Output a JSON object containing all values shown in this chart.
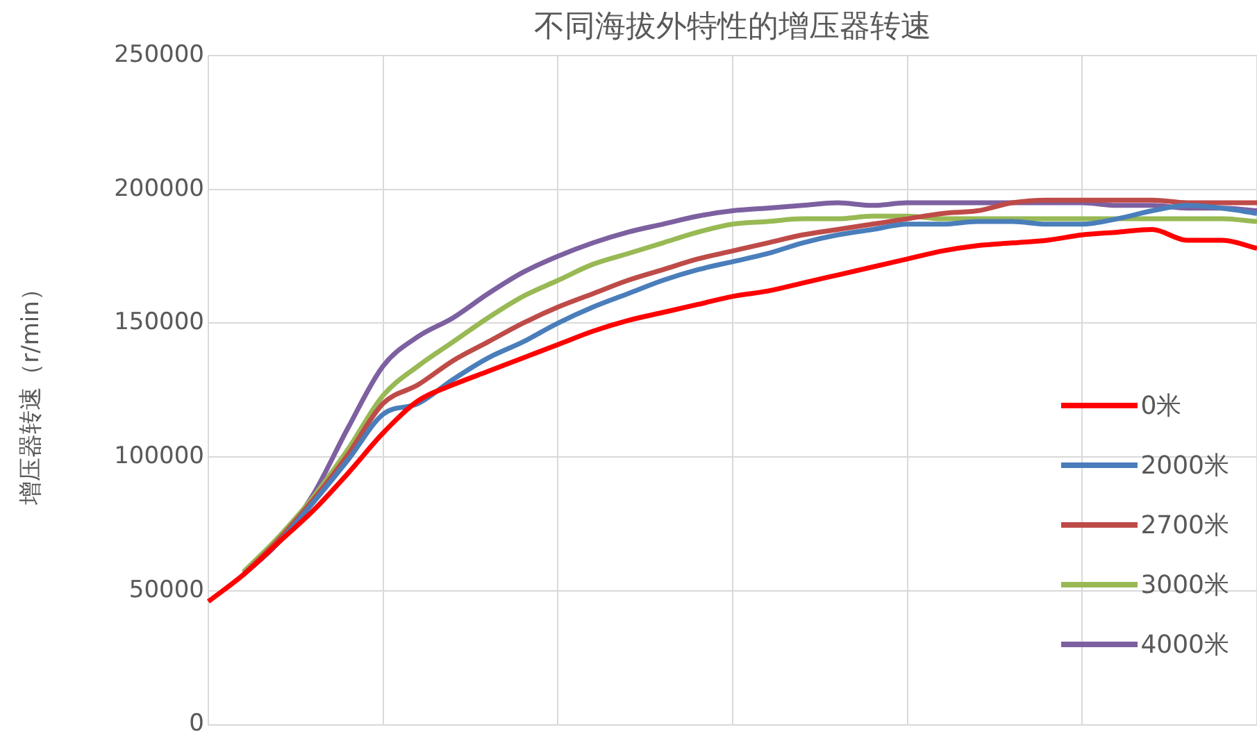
{
  "chart_data": {
    "type": "line",
    "title": "不同海拔外特性的增压器转速",
    "ylabel": "增压器转速（r/min）",
    "categories": [
      null,
      null,
      null,
      null,
      null,
      null,
      null,
      null,
      null,
      null,
      null,
      null,
      null,
      null,
      null,
      null,
      null,
      null,
      null,
      null,
      null,
      null,
      null,
      null,
      null,
      null,
      null,
      null,
      null,
      null,
      null
    ],
    "ylim": [
      0,
      250000
    ],
    "yticks": [
      0,
      50000,
      100000,
      150000,
      200000,
      250000
    ],
    "grid": true,
    "legend": "right",
    "tick_labels": "y",
    "marker": "none",
    "line_style": "solid",
    "series": [
      {
        "name": "0米",
        "color": "#ff0000",
        "values": [
          46000,
          56000,
          68000,
          80000,
          94000,
          109000,
          121000,
          127000,
          132000,
          137000,
          142000,
          147000,
          151000,
          154000,
          157000,
          160000,
          162000,
          165000,
          168000,
          171000,
          174000,
          177000,
          179000,
          180000,
          181000,
          183000,
          184000,
          185000,
          181000,
          181000,
          178000
        ]
      },
      {
        "name": "2000米",
        "color": "#4a7ebb",
        "values": [
          null,
          56000,
          68000,
          83000,
          99000,
          116000,
          120000,
          129000,
          137000,
          143000,
          150000,
          156000,
          161000,
          166000,
          170000,
          173000,
          176000,
          180000,
          183000,
          185000,
          187000,
          187000,
          188000,
          188000,
          187000,
          187000,
          189000,
          192000,
          194000,
          193000,
          191000
        ]
      },
      {
        "name": "2700米",
        "color": "#be4b48",
        "values": [
          null,
          56000,
          69000,
          84000,
          101000,
          120000,
          127000,
          136000,
          143000,
          150000,
          156000,
          161000,
          166000,
          170000,
          174000,
          177000,
          180000,
          183000,
          185000,
          187000,
          189000,
          191000,
          192000,
          195000,
          196000,
          196000,
          196000,
          196000,
          195000,
          195000,
          195000
        ]
      },
      {
        "name": "3000米",
        "color": "#98b954",
        "values": [
          null,
          57000,
          70000,
          85000,
          103000,
          123000,
          134000,
          143000,
          152000,
          160000,
          166000,
          172000,
          176000,
          180000,
          184000,
          187000,
          188000,
          189000,
          189000,
          190000,
          190000,
          189000,
          189000,
          189000,
          189000,
          189000,
          189000,
          189000,
          189000,
          189000,
          188000
        ]
      },
      {
        "name": "4000米",
        "color": "#7d60a0",
        "values": [
          null,
          56000,
          68000,
          86000,
          111000,
          134000,
          145000,
          152000,
          161000,
          169000,
          175000,
          180000,
          184000,
          187000,
          190000,
          192000,
          193000,
          194000,
          195000,
          194000,
          195000,
          195000,
          195000,
          195000,
          195000,
          195000,
          194000,
          194000,
          193000,
          193000,
          192000
        ]
      }
    ]
  }
}
